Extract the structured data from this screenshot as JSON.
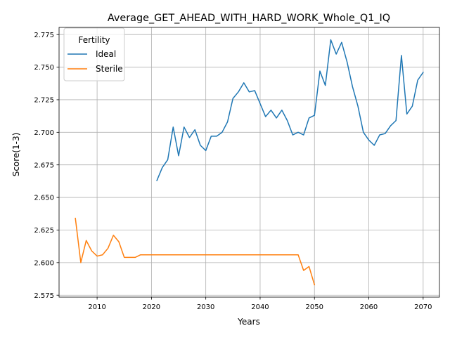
{
  "chart_data": {
    "type": "line",
    "title": "Average_GET_AHEAD_WITH_HARD_WORK_Whole_Q1_IQ",
    "xlabel": "Years",
    "ylabel": "Score(1-3)",
    "xlim": [
      2003,
      2073
    ],
    "ylim": [
      2.5735,
      2.7805
    ],
    "xticks": [
      2010,
      2020,
      2030,
      2040,
      2050,
      2060,
      2070
    ],
    "yticks": [
      2.575,
      2.6,
      2.625,
      2.65,
      2.675,
      2.7,
      2.725,
      2.75,
      2.775
    ],
    "grid": true,
    "legend": {
      "title": "Fertility",
      "position": "top-left"
    },
    "series": [
      {
        "name": "Ideal",
        "color": "#1f77b4",
        "x": [
          2021,
          2022,
          2023,
          2024,
          2025,
          2026,
          2027,
          2028,
          2029,
          2030,
          2031,
          2032,
          2033,
          2034,
          2035,
          2036,
          2037,
          2038,
          2039,
          2040,
          2041,
          2042,
          2043,
          2044,
          2045,
          2046,
          2047,
          2048,
          2049,
          2050,
          2051,
          2052,
          2053,
          2054,
          2055,
          2056,
          2057,
          2058,
          2059,
          2060,
          2061,
          2062,
          2063,
          2064,
          2065,
          2066,
          2067,
          2068,
          2069,
          2070
        ],
        "y": [
          2.663,
          2.673,
          2.679,
          2.704,
          2.682,
          2.704,
          2.696,
          2.702,
          2.69,
          2.686,
          2.697,
          2.697,
          2.7,
          2.708,
          2.726,
          2.731,
          2.738,
          2.731,
          2.732,
          2.722,
          2.712,
          2.717,
          2.711,
          2.717,
          2.709,
          2.698,
          2.7,
          2.698,
          2.711,
          2.713,
          2.747,
          2.736,
          2.771,
          2.76,
          2.769,
          2.754,
          2.735,
          2.72,
          2.7,
          2.694,
          2.69,
          2.698,
          2.699,
          2.705,
          2.709,
          2.759,
          2.714,
          2.72,
          2.74,
          2.746
        ]
      },
      {
        "name": "Sterile",
        "color": "#ff7f0e",
        "x": [
          2006,
          2007,
          2008,
          2009,
          2010,
          2011,
          2012,
          2013,
          2014,
          2015,
          2016,
          2017,
          2018,
          2019,
          2020,
          2021,
          2022,
          2023,
          2024,
          2025,
          2026,
          2027,
          2028,
          2029,
          2030,
          2031,
          2032,
          2033,
          2034,
          2035,
          2036,
          2037,
          2038,
          2039,
          2040,
          2041,
          2042,
          2043,
          2044,
          2045,
          2046,
          2047,
          2048,
          2049,
          2050
        ],
        "y": [
          2.634,
          2.6,
          2.617,
          2.609,
          2.605,
          2.606,
          2.611,
          2.621,
          2.616,
          2.604,
          2.604,
          2.604,
          2.606,
          2.606,
          2.606,
          2.606,
          2.606,
          2.606,
          2.606,
          2.606,
          2.606,
          2.606,
          2.606,
          2.606,
          2.606,
          2.606,
          2.606,
          2.606,
          2.606,
          2.606,
          2.606,
          2.606,
          2.606,
          2.606,
          2.606,
          2.606,
          2.606,
          2.606,
          2.606,
          2.606,
          2.606,
          2.606,
          2.594,
          2.597,
          2.583
        ]
      }
    ]
  }
}
